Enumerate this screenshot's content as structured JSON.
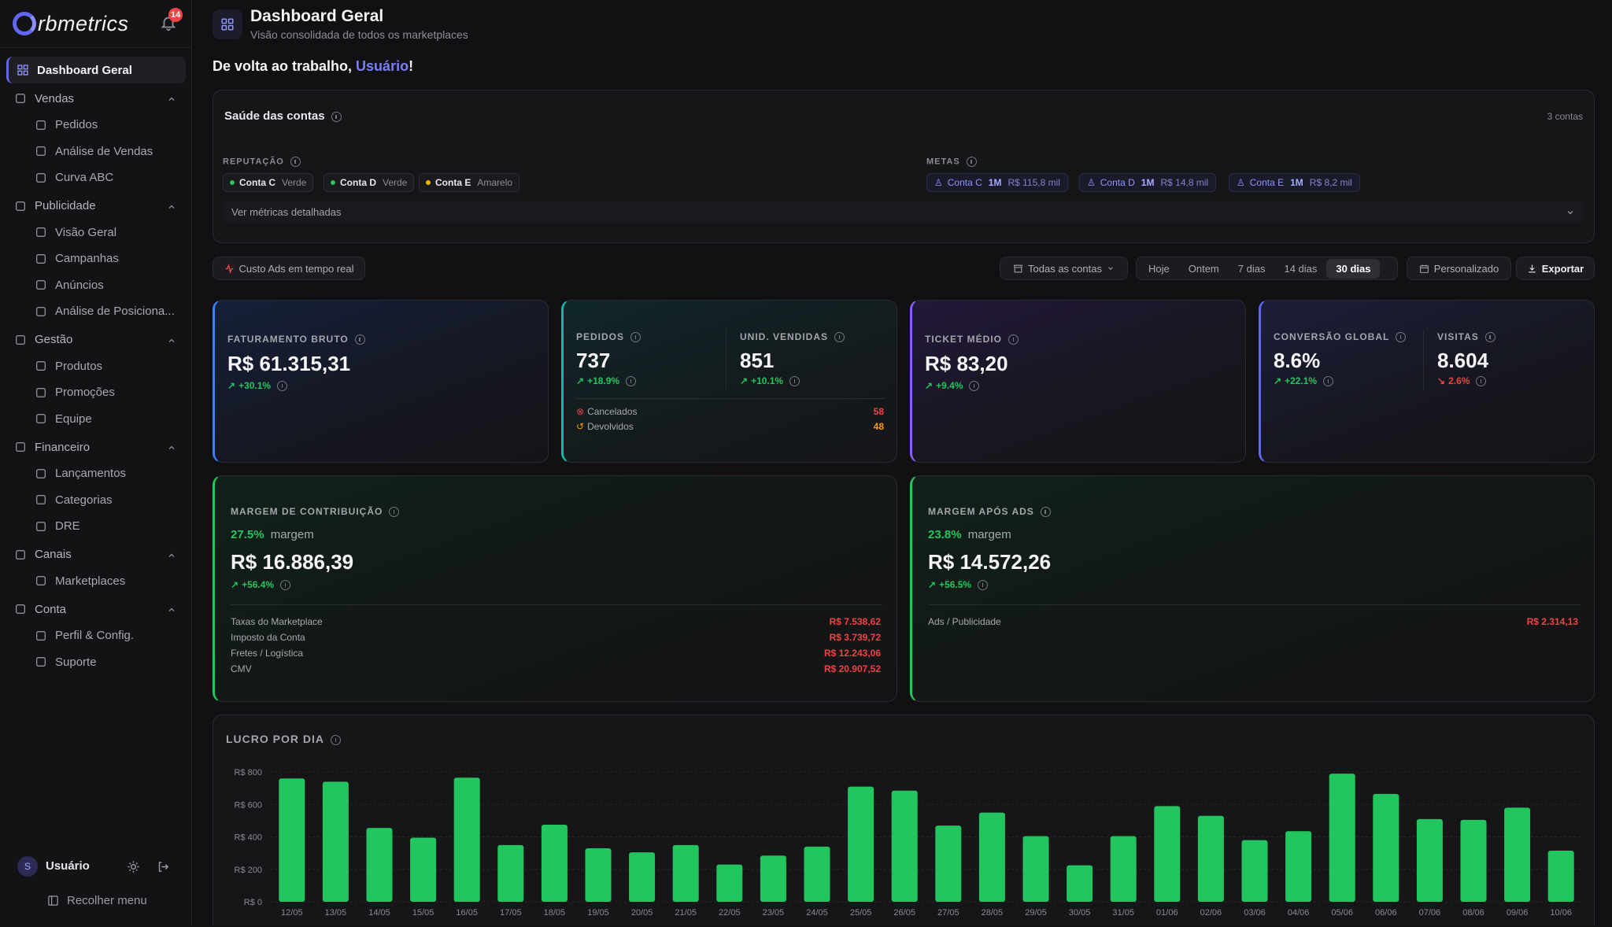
{
  "sidebar": {
    "logo_text": "rbmetrics",
    "notification_count": "14",
    "active": "Dashboard Geral",
    "groups": [
      {
        "label": "Vendas",
        "items": [
          "Pedidos",
          "Análise de Vendas",
          "Curva ABC"
        ]
      },
      {
        "label": "Publicidade",
        "items": [
          "Visão Geral",
          "Campanhas",
          "Anúncios",
          "Análise de Posiciona..."
        ]
      },
      {
        "label": "Gestão",
        "items": [
          "Produtos",
          "Promoções",
          "Equipe"
        ]
      },
      {
        "label": "Financeiro",
        "items": [
          "Lançamentos",
          "Categorias",
          "DRE"
        ]
      },
      {
        "label": "Canais",
        "items": [
          "Marketplaces"
        ]
      },
      {
        "label": "Conta",
        "items": [
          "Perfil & Config.",
          "Suporte"
        ]
      }
    ],
    "user": {
      "initial": "S",
      "name": "Usuário"
    },
    "collapse_label": "Recolher menu"
  },
  "header": {
    "title": "Dashboard Geral",
    "subtitle": "Visão consolidada de todos os marketplaces"
  },
  "welcome": {
    "prefix": "De volta ao trabalho, ",
    "user": "Usuário",
    "suffix": "!"
  },
  "health": {
    "title": "Saúde das contas",
    "count": "3 contas",
    "reputation_label": "REPUTAÇÃO",
    "reputation": [
      {
        "account": "Conta C",
        "status": "Verde",
        "color": "#22c55e"
      },
      {
        "account": "Conta D",
        "status": "Verde",
        "color": "#22c55e"
      },
      {
        "account": "Conta E",
        "status": "Amarelo",
        "color": "#eab308"
      }
    ],
    "goals_label": "METAS",
    "goals": [
      {
        "account": "Conta C",
        "period": "1M",
        "value": "R$ 115,8 mil"
      },
      {
        "account": "Conta D",
        "period": "1M",
        "value": "R$ 14,8 mil"
      },
      {
        "account": "Conta E",
        "period": "1M",
        "value": "R$ 8,2 mil"
      }
    ],
    "details_label": "Ver métricas detalhadas"
  },
  "toolbar": {
    "ads_cost": "Custo Ads em tempo real",
    "accounts": "Todas as contas",
    "periods": [
      "Hoje",
      "Ontem",
      "7 dias",
      "14 dias",
      "30 dias"
    ],
    "active_period": "30 dias",
    "custom": "Personalizado",
    "export": "Exportar"
  },
  "kpis": {
    "faturamento": {
      "label": "FATURAMENTO BRUTO",
      "value": "R$ 61.315,31",
      "delta": "+30.1%"
    },
    "pedidos": {
      "label": "PEDIDOS",
      "value": "737",
      "delta": "+18.9%"
    },
    "unidades": {
      "label": "UNID. VENDIDAS",
      "value": "851",
      "delta": "+10.1%"
    },
    "cancelados": {
      "label": "Cancelados",
      "value": "58"
    },
    "devolvidos": {
      "label": "Devolvidos",
      "value": "48"
    },
    "ticket": {
      "label": "TICKET MÉDIO",
      "value": "R$ 83,20",
      "delta": "+9.4%"
    },
    "conversao": {
      "label": "CONVERSÃO GLOBAL",
      "value": "8.6%",
      "delta": "+22.1%"
    },
    "visitas": {
      "label": "VISITAS",
      "value": "8.604",
      "delta": "2.6%"
    }
  },
  "margem_contrib": {
    "label": "MARGEM DE CONTRIBUIÇÃO",
    "pct": "27.5%",
    "pct_label": "margem",
    "value": "R$ 16.886,39",
    "delta": "+56.4%",
    "rows": [
      {
        "label": "Taxas do Marketplace",
        "value": "R$ 7.538,62"
      },
      {
        "label": "Imposto da Conta",
        "value": "R$ 3.739,72"
      },
      {
        "label": "Fretes / Logística",
        "value": "R$ 12.243,06"
      },
      {
        "label": "CMV",
        "value": "R$ 20.907,52"
      }
    ]
  },
  "margem_ads": {
    "label": "MARGEM APÓS ADS",
    "pct": "23.8%",
    "pct_label": "margem",
    "value": "R$ 14.572,26",
    "delta": "+56.5%",
    "rows": [
      {
        "label": "Ads / Publicidade",
        "value": "R$ 2.314,13"
      }
    ]
  },
  "chart_data": {
    "type": "bar",
    "title": "LUCRO POR DIA",
    "bar_color": "#22c55e",
    "ylim": [
      0,
      800
    ],
    "yticks": [
      "R$ 0",
      "R$ 200",
      "R$ 400",
      "R$ 600",
      "R$ 800"
    ],
    "categories": [
      "12/05",
      "13/05",
      "14/05",
      "15/05",
      "16/05",
      "17/05",
      "18/05",
      "19/05",
      "20/05",
      "21/05",
      "22/05",
      "23/05",
      "24/05",
      "25/05",
      "26/05",
      "27/05",
      "28/05",
      "29/05",
      "30/05",
      "31/05",
      "01/06",
      "02/06",
      "03/06",
      "04/06",
      "05/06",
      "06/06",
      "07/06",
      "08/06",
      "09/06",
      "10/06"
    ],
    "values": [
      760,
      740,
      455,
      395,
      765,
      350,
      475,
      330,
      305,
      350,
      230,
      285,
      340,
      710,
      685,
      470,
      550,
      405,
      225,
      405,
      590,
      530,
      380,
      435,
      790,
      665,
      510,
      505,
      580,
      315
    ]
  }
}
